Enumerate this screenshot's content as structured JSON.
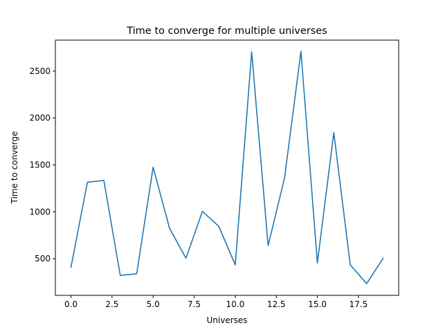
{
  "chart_data": {
    "type": "line",
    "title": "Time to converge for multiple universes",
    "xlabel": "Universes",
    "ylabel": "Time to converge",
    "xlim": [
      -0.95,
      19.95
    ],
    "ylim": [
      110,
      2830
    ],
    "x_ticks": [
      0.0,
      2.5,
      5.0,
      7.5,
      10.0,
      12.5,
      15.0,
      17.5
    ],
    "x_tick_labels": [
      "0.0",
      "2.5",
      "5.0",
      "7.5",
      "10.0",
      "12.5",
      "15.0",
      "17.5"
    ],
    "y_ticks": [
      500,
      1000,
      1500,
      2000,
      2500
    ],
    "y_tick_labels": [
      "500",
      "1000",
      "1500",
      "2000",
      "2500"
    ],
    "grid": false,
    "line_color": "#1f77b4",
    "series": [
      {
        "x": [
          0,
          1,
          2,
          3,
          4,
          5,
          6,
          7,
          8,
          9,
          10,
          11,
          12,
          13,
          14,
          15,
          16,
          17,
          18,
          19
        ],
        "values": [
          410,
          1315,
          1335,
          322,
          340,
          1475,
          825,
          505,
          1005,
          845,
          435,
          2705,
          640,
          1360,
          2710,
          455,
          1845,
          435,
          235,
          505
        ]
      }
    ]
  }
}
